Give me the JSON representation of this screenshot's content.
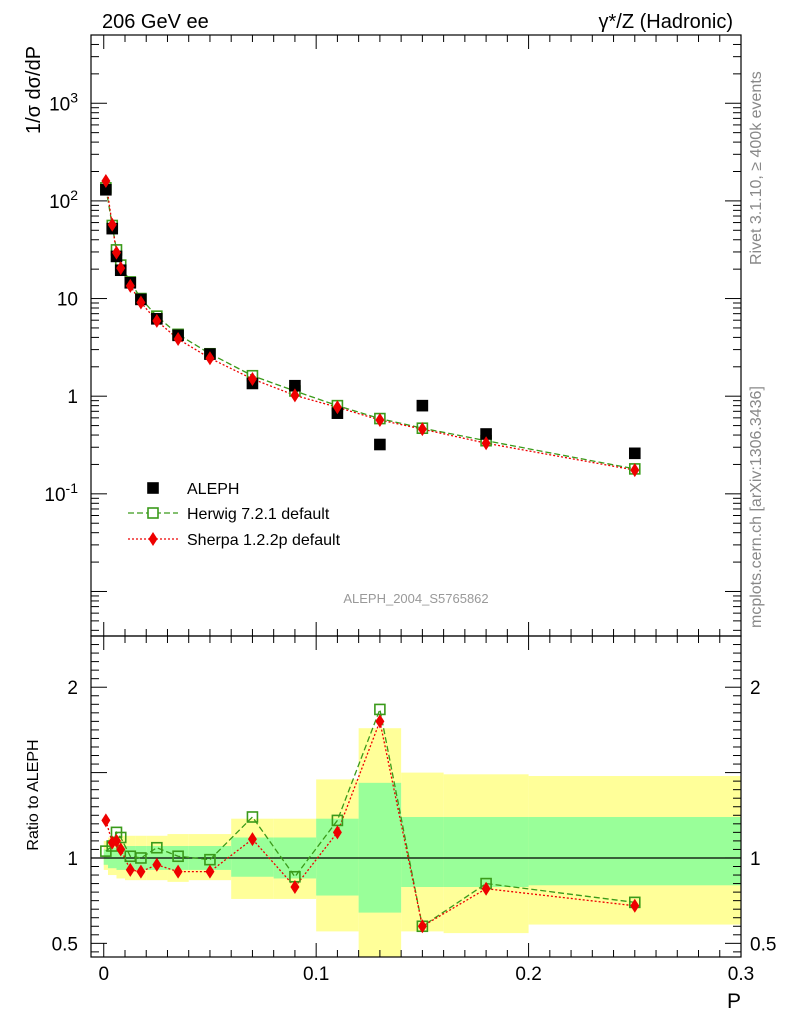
{
  "header": {
    "left_title": "206 GeV ee",
    "right_title": "γ*/Z (Hadronic)"
  },
  "side_text": {
    "rivet": "Rivet 3.1.10, ≥ 400k events",
    "mcplots": "mcplots.cern.ch [arXiv:1306.3436]"
  },
  "watermark": "ALEPH_2004_S5765862",
  "colors": {
    "data": "#000000",
    "herwig": "#3a9a1a",
    "sherpa": "#ee0000",
    "band_outer": "#ffff99",
    "band_inner": "#99ff99"
  },
  "chart_data": [
    {
      "type": "scatter",
      "name": "main",
      "yscale": "log",
      "ylabel": "1/σ  dσ/dP",
      "xlim": [
        -0.006,
        0.3
      ],
      "ylim": [
        0.0035,
        5000
      ],
      "y_tick_labels": [
        "10^3",
        "10^2",
        "10",
        "1",
        "10^-1"
      ],
      "legend": {
        "position": "lower-left",
        "entries": [
          "ALEPH",
          "Herwig 7.2.1 default",
          "Sherpa 1.2.2p default"
        ]
      },
      "series": [
        {
          "name": "ALEPH",
          "style": "square",
          "x": [
            0.001,
            0.004,
            0.006,
            0.008,
            0.0125,
            0.0175,
            0.025,
            0.035,
            0.05,
            0.07,
            0.09,
            0.11,
            0.13,
            0.15,
            0.18,
            0.25
          ],
          "y": [
            130,
            52,
            27,
            19.5,
            14.5,
            9.8,
            6.2,
            4.2,
            2.7,
            1.35,
            1.28,
            0.67,
            0.32,
            0.8,
            0.41,
            0.26
          ]
        },
        {
          "name": "Herwig 7.2.1 default",
          "style": "open-square-dashed",
          "x": [
            0.001,
            0.004,
            0.006,
            0.008,
            0.0125,
            0.0175,
            0.025,
            0.035,
            0.05,
            0.07,
            0.09,
            0.11,
            0.13,
            0.15,
            0.18,
            0.25
          ],
          "y": [
            136,
            56,
            31.5,
            22,
            14.8,
            10.0,
            6.6,
            4.3,
            2.72,
            1.62,
            1.13,
            0.8,
            0.59,
            0.47,
            0.35,
            0.18
          ]
        },
        {
          "name": "Sherpa 1.2.2p default",
          "style": "diamond-dotted",
          "x": [
            0.001,
            0.004,
            0.006,
            0.008,
            0.0125,
            0.0175,
            0.025,
            0.035,
            0.05,
            0.07,
            0.09,
            0.11,
            0.13,
            0.15,
            0.18,
            0.25
          ],
          "y": [
            160,
            57,
            29.5,
            20.5,
            13.5,
            9.1,
            5.9,
            3.85,
            2.45,
            1.5,
            1.02,
            0.77,
            0.57,
            0.46,
            0.33,
            0.175
          ]
        }
      ]
    },
    {
      "type": "line",
      "name": "ratio",
      "ylabel": "Ratio to ALEPH",
      "xlabel": "P",
      "xlim": [
        -0.006,
        0.3
      ],
      "ylim": [
        0.42,
        2.3
      ],
      "x_tick_labels": [
        "0",
        "0.1",
        "0.2",
        "0.3"
      ],
      "y_tick_labels": [
        "0.5",
        "1",
        "2"
      ],
      "bands": {
        "edges": [
          0.0,
          0.002,
          0.006,
          0.01,
          0.015,
          0.02,
          0.03,
          0.04,
          0.06,
          0.08,
          0.1,
          0.12,
          0.14,
          0.16,
          0.2,
          0.3
        ],
        "outer_low": [
          0.93,
          0.9,
          0.88,
          0.87,
          0.87,
          0.87,
          0.86,
          0.87,
          0.76,
          0.76,
          0.57,
          0.4,
          0.57,
          0.56,
          0.61
        ],
        "outer_high": [
          1.1,
          1.12,
          1.13,
          1.13,
          1.13,
          1.13,
          1.14,
          1.14,
          1.23,
          1.23,
          1.46,
          1.76,
          1.5,
          1.49,
          1.48
        ],
        "inner_low": [
          0.96,
          0.94,
          0.93,
          0.93,
          0.93,
          0.93,
          0.93,
          0.93,
          0.89,
          0.88,
          0.78,
          0.68,
          0.83,
          0.83,
          0.84
        ],
        "inner_high": [
          1.05,
          1.06,
          1.07,
          1.07,
          1.07,
          1.07,
          1.07,
          1.07,
          1.12,
          1.12,
          1.23,
          1.44,
          1.24,
          1.24,
          1.24
        ]
      },
      "series": [
        {
          "name": "Herwig 7.2.1 default",
          "x": [
            0.001,
            0.004,
            0.006,
            0.008,
            0.0125,
            0.0175,
            0.025,
            0.035,
            0.05,
            0.07,
            0.09,
            0.11,
            0.13,
            0.15,
            0.18,
            0.25
          ],
          "y": [
            1.04,
            1.07,
            1.15,
            1.12,
            1.01,
            1.0,
            1.06,
            1.01,
            0.99,
            1.24,
            0.89,
            1.22,
            1.87,
            0.6,
            0.85,
            0.74
          ]
        },
        {
          "name": "Sherpa 1.2.2p default",
          "x": [
            0.001,
            0.004,
            0.006,
            0.008,
            0.0125,
            0.0175,
            0.025,
            0.035,
            0.05,
            0.07,
            0.09,
            0.11,
            0.13,
            0.15,
            0.18,
            0.25
          ],
          "y": [
            1.22,
            1.09,
            1.1,
            1.05,
            0.93,
            0.92,
            0.96,
            0.92,
            0.92,
            1.11,
            0.83,
            1.15,
            1.8,
            0.6,
            0.82,
            0.72
          ]
        }
      ]
    }
  ]
}
